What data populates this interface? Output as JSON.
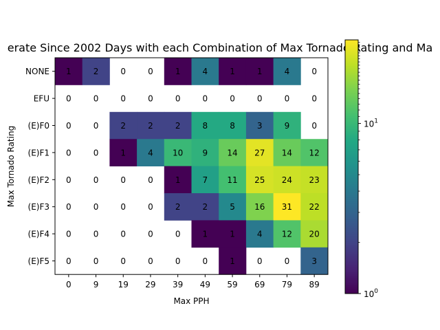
{
  "chart_data": {
    "type": "heatmap",
    "title": "erate Since 2002 Days with each Combination of Max Tornado Rating and Ma",
    "xlabel": "Max PPH",
    "ylabel": "Max Tornado Rating",
    "x_categories": [
      "0",
      "9",
      "19",
      "29",
      "39",
      "49",
      "59",
      "69",
      "79",
      "89"
    ],
    "y_categories": [
      "NONE",
      "EFU",
      "(E)F0",
      "(E)F1",
      "(E)F2",
      "(E)F3",
      "(E)F4",
      "(E)F5"
    ],
    "values": [
      [
        1,
        2,
        0,
        0,
        1,
        4,
        1,
        1,
        4,
        0
      ],
      [
        0,
        0,
        0,
        0,
        0,
        0,
        0,
        0,
        0,
        0
      ],
      [
        0,
        0,
        2,
        2,
        2,
        8,
        8,
        3,
        9,
        0
      ],
      [
        0,
        0,
        1,
        4,
        10,
        9,
        14,
        27,
        14,
        12
      ],
      [
        0,
        0,
        0,
        0,
        1,
        7,
        11,
        25,
        24,
        23
      ],
      [
        0,
        0,
        0,
        0,
        2,
        2,
        5,
        16,
        31,
        22
      ],
      [
        0,
        0,
        0,
        0,
        0,
        1,
        1,
        4,
        12,
        20
      ],
      [
        0,
        0,
        0,
        0,
        0,
        0,
        1,
        0,
        0,
        3
      ]
    ],
    "zero_cells": "blank",
    "color_scale": {
      "type": "log",
      "colormap": "viridis",
      "range": [
        1,
        31
      ],
      "tick_labels": [
        "10^0",
        "10^1"
      ]
    }
  }
}
